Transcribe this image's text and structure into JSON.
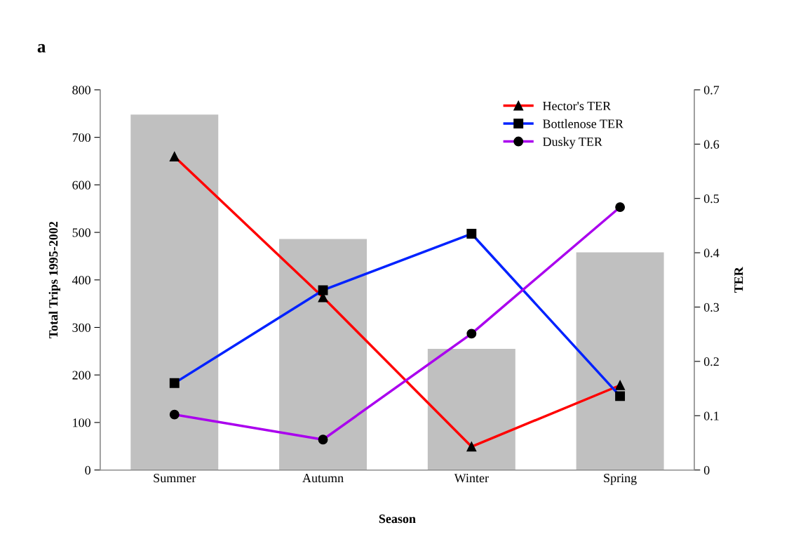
{
  "chart_data": {
    "type": "bar",
    "categories": [
      "Summer",
      "Autumn",
      "Winter",
      "Spring"
    ],
    "xlabel": "Season",
    "ylabel": "Total Trips 1995-2002",
    "y2label": "TER",
    "annotations": [
      "a"
    ],
    "ylim": [
      0,
      800
    ],
    "yticks": [
      0,
      100,
      200,
      300,
      400,
      500,
      600,
      700,
      800
    ],
    "y2lim": [
      0,
      0.7
    ],
    "y2ticks": [
      0,
      0.1,
      0.2,
      0.3,
      0.4,
      0.5,
      0.6,
      0.7
    ],
    "legend": "top right",
    "grid": false,
    "line_style": "solid",
    "series": [
      {
        "color": "#c0c0c0",
        "values": [
          748,
          486,
          255,
          458
        ]
      },
      {
        "type": "line",
        "axis": "y2",
        "name": "Hector's TER",
        "color": "#ff0000",
        "marker": "triangle",
        "values": [
          0.577,
          0.318,
          0.043,
          0.156
        ]
      },
      {
        "type": "line",
        "axis": "y2",
        "name": "Bottlenose TER",
        "color": "#0022ff",
        "marker": "square",
        "values": [
          0.16,
          0.331,
          0.435,
          0.136
        ]
      },
      {
        "type": "line",
        "axis": "y2",
        "name": "Dusky TER",
        "color": "#aa00ee",
        "marker": "circle",
        "values": [
          0.102,
          0.056,
          0.251,
          0.484
        ]
      }
    ]
  }
}
